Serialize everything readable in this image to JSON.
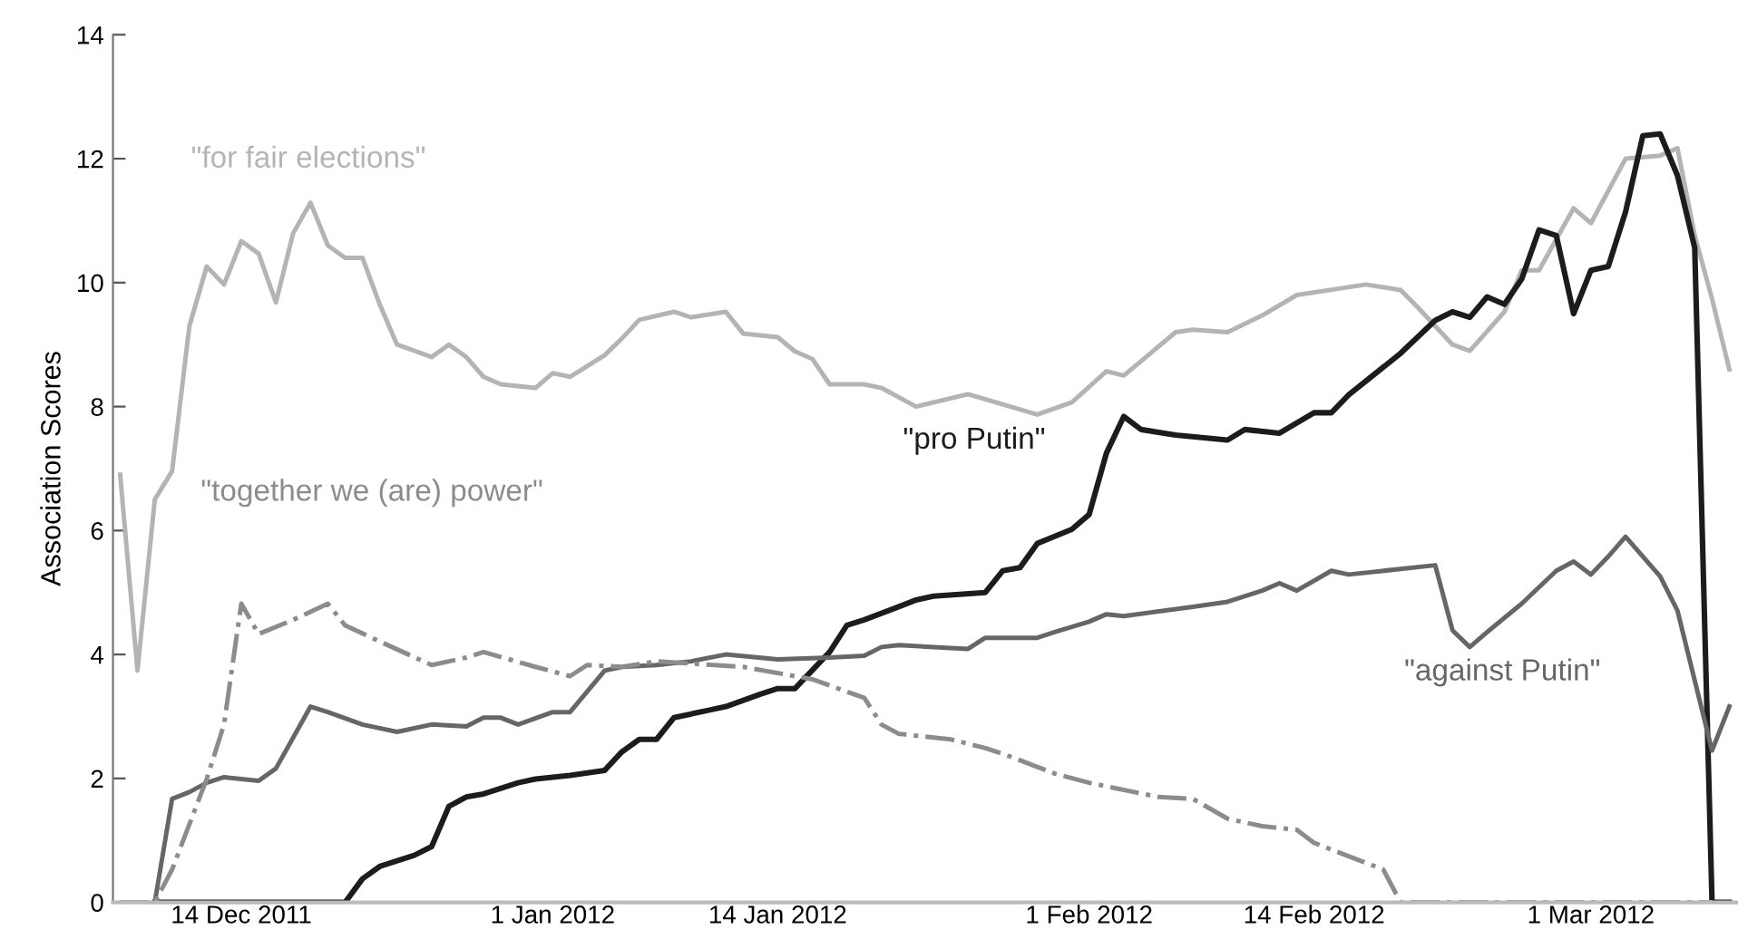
{
  "chart_data": {
    "type": "line",
    "ylabel": "Association Scores",
    "xlim": [
      "2011-12-06T14:00",
      "2012-03-09T12:00"
    ],
    "xticks": [
      {
        "value": "2011-12-14",
        "label": "14 Dec 2011"
      },
      {
        "value": "2012-01-01",
        "label": "1 Jan 2012"
      },
      {
        "value": "2012-01-14",
        "label": "14 Jan 2012"
      },
      {
        "value": "2012-02-01",
        "label": "1 Feb 2012"
      },
      {
        "value": "2012-02-14",
        "label": "14 Feb 2012"
      },
      {
        "value": "2012-03-01",
        "label": "1 Mar 2012"
      }
    ],
    "ylim": [
      0,
      14
    ],
    "yticks": [
      0,
      2,
      4,
      6,
      8,
      10,
      12,
      14
    ],
    "grid": false,
    "legend": false,
    "marker": "none",
    "series": [
      {
        "name": "\"for fair elections\"",
        "color": "#b4b4b4",
        "line_style": "solid",
        "x": [
          "2011-12-07",
          "2011-12-08",
          "2011-12-09",
          "2011-12-10",
          "2011-12-11",
          "2011-12-12",
          "2011-12-13",
          "2011-12-14",
          "2011-12-15",
          "2011-12-16",
          "2011-12-17",
          "2011-12-18",
          "2011-12-19",
          "2011-12-20",
          "2011-12-21",
          "2011-12-22",
          "2011-12-23",
          "2011-12-25",
          "2011-12-26",
          "2011-12-27",
          "2011-12-28",
          "2011-12-29",
          "2011-12-31",
          "2012-01-01",
          "2012-01-02",
          "2012-01-04",
          "2012-01-05",
          "2012-01-06",
          "2012-01-08",
          "2012-01-09",
          "2012-01-11",
          "2012-01-12",
          "2012-01-14",
          "2012-01-15",
          "2012-01-16",
          "2012-01-17",
          "2012-01-19",
          "2012-01-20",
          "2012-01-22",
          "2012-01-25",
          "2012-01-29",
          "2012-01-31",
          "2012-02-02",
          "2012-02-03",
          "2012-02-06",
          "2012-02-07",
          "2012-02-09",
          "2012-02-11",
          "2012-02-13",
          "2012-02-17",
          "2012-02-19",
          "2012-02-20",
          "2012-02-21",
          "2012-02-22",
          "2012-02-23",
          "2012-02-25",
          "2012-02-26",
          "2012-02-27",
          "2012-02-29",
          "2012-03-01",
          "2012-03-03",
          "2012-03-05",
          "2012-03-06",
          "2012-03-07",
          "2012-03-08",
          "2012-03-09"
        ],
        "values": [
          6.9,
          3.74,
          6.5,
          6.96,
          9.3,
          10.26,
          9.97,
          10.67,
          10.47,
          9.68,
          10.8,
          11.29,
          10.6,
          10.4,
          10.4,
          9.65,
          9.0,
          8.8,
          9.0,
          8.8,
          8.48,
          8.36,
          8.3,
          8.54,
          8.48,
          8.83,
          9.1,
          9.4,
          9.53,
          9.44,
          9.53,
          9.18,
          9.12,
          8.89,
          8.77,
          8.36,
          8.36,
          8.3,
          8.0,
          8.2,
          7.87,
          8.07,
          8.57,
          8.5,
          9.2,
          9.24,
          9.2,
          9.47,
          9.8,
          9.97,
          9.88,
          9.6,
          9.3,
          9.0,
          8.9,
          9.53,
          10.2,
          10.2,
          11.2,
          10.96,
          12.0,
          12.05,
          12.17,
          10.76,
          9.74,
          8.6
        ]
      },
      {
        "name": "\"pro Putin\"",
        "color": "#1c1c1c",
        "line_style": "solid",
        "x": [
          "2011-12-09",
          "2011-12-20",
          "2011-12-21",
          "2011-12-22",
          "2011-12-24",
          "2011-12-25",
          "2011-12-26",
          "2011-12-27",
          "2011-12-28",
          "2011-12-30",
          "2011-12-31",
          "2012-01-02",
          "2012-01-04",
          "2012-01-05",
          "2012-01-06",
          "2012-01-07",
          "2012-01-08",
          "2012-01-10",
          "2012-01-11",
          "2012-01-13",
          "2012-01-14",
          "2012-01-15",
          "2012-01-17",
          "2012-01-18",
          "2012-01-19",
          "2012-01-21",
          "2012-01-22",
          "2012-01-23",
          "2012-01-26",
          "2012-01-27",
          "2012-01-28",
          "2012-01-29",
          "2012-01-31",
          "2012-02-01",
          "2012-02-02",
          "2012-02-03",
          "2012-02-04",
          "2012-02-06",
          "2012-02-09",
          "2012-02-10",
          "2012-02-12",
          "2012-02-14",
          "2012-02-15",
          "2012-02-16",
          "2012-02-19",
          "2012-02-21",
          "2012-02-22",
          "2012-02-23",
          "2012-02-24",
          "2012-02-25",
          "2012-02-26",
          "2012-02-27",
          "2012-02-28",
          "2012-02-29",
          "2012-03-01",
          "2012-03-02",
          "2012-03-03",
          "2012-03-04",
          "2012-03-05",
          "2012-03-06",
          "2012-03-07",
          "2012-03-08",
          "2012-03-09"
        ],
        "values": [
          0,
          0,
          0.38,
          0.58,
          0.76,
          0.9,
          1.55,
          1.7,
          1.75,
          1.93,
          1.99,
          2.05,
          2.13,
          2.43,
          2.63,
          2.63,
          2.98,
          3.1,
          3.16,
          3.36,
          3.45,
          3.45,
          4.04,
          4.47,
          4.56,
          4.77,
          4.88,
          4.94,
          5.0,
          5.35,
          5.4,
          5.79,
          6.02,
          6.26,
          7.25,
          7.84,
          7.63,
          7.54,
          7.46,
          7.63,
          7.57,
          7.9,
          7.9,
          8.19,
          8.86,
          9.39,
          9.53,
          9.44,
          9.77,
          9.65,
          10.06,
          10.85,
          10.76,
          9.5,
          10.2,
          10.26,
          11.14,
          12.37,
          12.4,
          11.73,
          10.56,
          0,
          0
        ]
      },
      {
        "name": "\"against Putin\"",
        "color": "#666666",
        "line_style": "solid",
        "x": [
          "2011-12-09",
          "2011-12-10",
          "2011-12-11",
          "2011-12-12",
          "2011-12-13",
          "2011-12-15",
          "2011-12-16",
          "2011-12-17",
          "2011-12-18",
          "2011-12-19",
          "2011-12-21",
          "2011-12-23",
          "2011-12-25",
          "2011-12-27",
          "2011-12-28",
          "2011-12-29",
          "2011-12-30",
          "2012-01-01",
          "2012-01-02",
          "2012-01-04",
          "2012-01-05",
          "2012-01-07",
          "2012-01-09",
          "2012-01-11",
          "2012-01-14",
          "2012-01-17",
          "2012-01-19",
          "2012-01-20",
          "2012-01-21",
          "2012-01-25",
          "2012-01-26",
          "2012-01-29",
          "2012-01-30",
          "2012-02-01",
          "2012-02-02",
          "2012-02-03",
          "2012-02-07",
          "2012-02-09",
          "2012-02-11",
          "2012-02-12",
          "2012-02-13",
          "2012-02-15",
          "2012-02-16",
          "2012-02-21",
          "2012-02-22",
          "2012-02-23",
          "2012-02-24",
          "2012-02-26",
          "2012-02-28",
          "2012-02-29",
          "2012-03-01",
          "2012-03-02",
          "2012-03-03",
          "2012-03-05",
          "2012-03-06",
          "2012-03-08",
          "2012-03-09"
        ],
        "values": [
          0,
          1.67,
          1.78,
          1.93,
          2.02,
          1.96,
          2.16,
          2.66,
          3.16,
          3.07,
          2.87,
          2.75,
          2.87,
          2.84,
          2.98,
          2.98,
          2.87,
          3.07,
          3.07,
          3.74,
          3.8,
          3.83,
          3.89,
          4.0,
          3.92,
          3.95,
          3.98,
          4.12,
          4.15,
          4.09,
          4.27,
          4.27,
          4.36,
          4.53,
          4.65,
          4.62,
          4.77,
          4.85,
          5.03,
          5.15,
          5.03,
          5.35,
          5.29,
          5.44,
          4.39,
          4.12,
          4.36,
          4.82,
          5.35,
          5.5,
          5.29,
          5.58,
          5.9,
          5.26,
          4.71,
          2.45,
          3.16
        ]
      },
      {
        "name": "\"together we (are) power\"",
        "color": "#8c8c8c",
        "line_style": "dashdot",
        "x": [
          "2011-12-07",
          "2011-12-09",
          "2011-12-10",
          "2011-12-12",
          "2011-12-13",
          "2011-12-14",
          "2011-12-15",
          "2011-12-17",
          "2011-12-19",
          "2011-12-20",
          "2011-12-22",
          "2011-12-25",
          "2011-12-27",
          "2011-12-28",
          "2011-12-31",
          "2012-01-02",
          "2012-01-03",
          "2012-01-05",
          "2012-01-07",
          "2012-01-12",
          "2012-01-16",
          "2012-01-19",
          "2012-01-20",
          "2012-01-21",
          "2012-01-24",
          "2012-01-26",
          "2012-01-27",
          "2012-01-30",
          "2012-02-01",
          "2012-02-05",
          "2012-02-07",
          "2012-02-09",
          "2012-02-11",
          "2012-02-13",
          "2012-02-14",
          "2012-02-18",
          "2012-02-19",
          "2012-03-08"
        ],
        "values": [
          0,
          0,
          0.53,
          1.99,
          2.87,
          4.82,
          4.33,
          4.56,
          4.82,
          4.47,
          4.21,
          3.83,
          3.95,
          4.04,
          3.8,
          3.65,
          3.83,
          3.8,
          3.89,
          3.8,
          3.6,
          3.3,
          2.87,
          2.72,
          2.63,
          2.49,
          2.4,
          2.08,
          1.93,
          1.7,
          1.67,
          1.35,
          1.23,
          1.17,
          0.96,
          0.53,
          0,
          0
        ]
      }
    ]
  }
}
